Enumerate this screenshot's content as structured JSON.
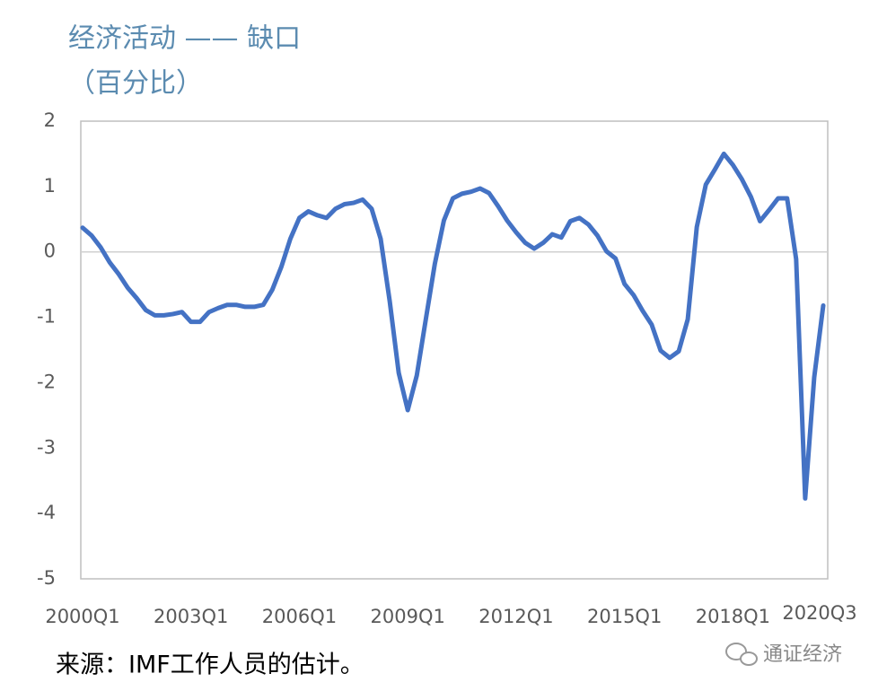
{
  "chart_data": {
    "type": "line",
    "title": "经济活动 —— 缺口",
    "subtitle": "（百分比）",
    "source": "来源：IMF工作人员的估计。",
    "watermark": "通证经济",
    "categories": [
      "2000Q1",
      null,
      null,
      null,
      null,
      null,
      null,
      null,
      null,
      null,
      null,
      null,
      "2003Q1",
      null,
      null,
      null,
      null,
      null,
      null,
      null,
      null,
      null,
      null,
      null,
      "2006Q1",
      null,
      null,
      null,
      null,
      null,
      null,
      null,
      null,
      null,
      null,
      null,
      "2009Q1",
      null,
      null,
      null,
      null,
      null,
      null,
      null,
      null,
      null,
      null,
      null,
      "2012Q1",
      null,
      null,
      null,
      null,
      null,
      null,
      null,
      null,
      null,
      null,
      null,
      "2015Q1",
      null,
      null,
      null,
      null,
      null,
      null,
      null,
      null,
      null,
      null,
      null,
      "2018Q1",
      null,
      null,
      null,
      null,
      null,
      null,
      null,
      null,
      null,
      "2020Q3"
    ],
    "values": [
      0.37,
      0.25,
      0.07,
      -0.16,
      -0.34,
      -0.55,
      -0.71,
      -0.89,
      -0.97,
      -0.97,
      -0.95,
      -0.92,
      -1.07,
      -1.07,
      -0.92,
      -0.86,
      -0.81,
      -0.81,
      -0.84,
      -0.84,
      -0.81,
      -0.58,
      -0.23,
      0.2,
      0.52,
      0.62,
      0.56,
      0.52,
      0.66,
      0.73,
      0.75,
      0.8,
      0.66,
      0.2,
      -0.75,
      -1.85,
      -2.42,
      -1.89,
      -1.03,
      -0.18,
      0.48,
      0.82,
      0.89,
      0.92,
      0.97,
      0.9,
      0.7,
      0.48,
      0.3,
      0.14,
      0.05,
      0.14,
      0.27,
      0.22,
      0.47,
      0.52,
      0.42,
      0.25,
      0.01,
      -0.1,
      -0.49,
      -0.66,
      -0.9,
      -1.11,
      -1.51,
      -1.62,
      -1.52,
      -1.03,
      0.38,
      1.03,
      1.26,
      1.5,
      1.33,
      1.11,
      0.84,
      0.47,
      0.64,
      0.82,
      0.82,
      -0.11,
      -3.77,
      -1.92,
      -0.82
    ],
    "color": "#4472c4",
    "ylim": [
      -5,
      2
    ],
    "yticks": [
      -5,
      -4,
      -3,
      -2,
      -1,
      0,
      1,
      2
    ],
    "zero_line": true
  }
}
